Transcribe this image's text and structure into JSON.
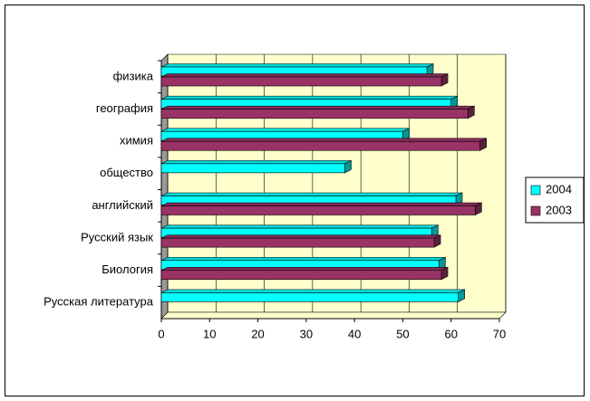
{
  "chart_data": {
    "type": "bar3d_horizontal",
    "categories": [
      "физика",
      "география",
      "химия",
      "общество",
      "английский",
      "Русский язык",
      "Биология",
      "Русская литература"
    ],
    "series": [
      {
        "name": "2004",
        "color": "#00ffff",
        "values": [
          55,
          60,
          50,
          38,
          61,
          56,
          57.5,
          61.5
        ]
      },
      {
        "name": "2003",
        "color": "#993366",
        "values": [
          58,
          63.5,
          66,
          null,
          65,
          56.5,
          58,
          null
        ]
      }
    ],
    "xlim": [
      0,
      70
    ],
    "xticks": [
      0,
      10,
      20,
      30,
      40,
      50,
      60,
      70
    ],
    "grid": true,
    "legend": "right"
  }
}
